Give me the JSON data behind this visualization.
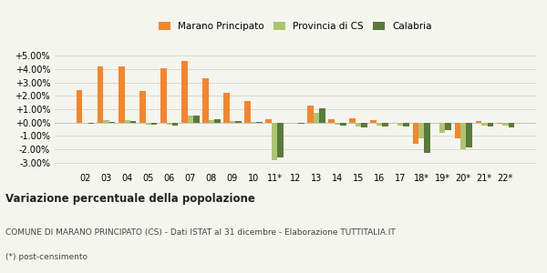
{
  "years": [
    "02",
    "03",
    "04",
    "05",
    "06",
    "07",
    "08",
    "09",
    "10",
    "11*",
    "12",
    "13",
    "14",
    "15",
    "16",
    "17",
    "18*",
    "19*",
    "20*",
    "21*",
    "22*"
  ],
  "marano": [
    2.45,
    4.2,
    4.2,
    2.35,
    4.1,
    4.6,
    3.35,
    2.2,
    1.6,
    0.25,
    -0.05,
    1.3,
    0.25,
    0.3,
    0.2,
    0.0,
    -1.6,
    0.0,
    -1.15,
    0.1,
    -0.1
  ],
  "provincia": [
    -0.05,
    0.15,
    0.15,
    -0.15,
    -0.15,
    0.55,
    0.2,
    0.1,
    0.05,
    -2.8,
    -0.05,
    0.7,
    -0.15,
    -0.3,
    -0.25,
    -0.25,
    -1.2,
    -0.8,
    -2.0,
    -0.2,
    -0.25
  ],
  "calabria": [
    -0.1,
    0.05,
    0.1,
    -0.15,
    -0.2,
    0.55,
    0.25,
    0.1,
    0.05,
    -2.6,
    -0.1,
    1.05,
    -0.2,
    -0.35,
    -0.3,
    -0.3,
    -2.25,
    -0.6,
    -1.85,
    -0.3,
    -0.35
  ],
  "color_marano": "#f5852a",
  "color_provincia": "#adc472",
  "color_calabria": "#5a7a3a",
  "ylim": [
    -3.5,
    5.5
  ],
  "yticks": [
    -3.0,
    -2.0,
    -1.0,
    0.0,
    1.0,
    2.0,
    3.0,
    4.0,
    5.0
  ],
  "title_bold": "Variazione percentuale della popolazione",
  "subtitle": "COMUNE DI MARANO PRINCIPATO (CS) - Dati ISTAT al 31 dicembre - Elaborazione TUTTITALIA.IT",
  "footnote": "(*) post-censimento",
  "legend_labels": [
    "Marano Principato",
    "Provincia di CS",
    "Calabria"
  ],
  "background_color": "#f5f5ef"
}
